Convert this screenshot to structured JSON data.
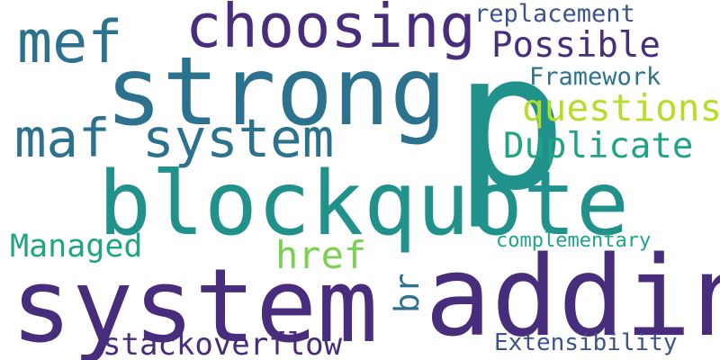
{
  "words": [
    {
      "text": "p",
      "color": "#21918c"
    },
    {
      "text": "system",
      "color": "#472d7b"
    },
    {
      "text": "addin",
      "color": "#472d7b"
    },
    {
      "text": "blockquote",
      "color": "#21918c"
    },
    {
      "text": "strong",
      "color": "#2c728e"
    },
    {
      "text": "choosing",
      "color": "#472d7b"
    },
    {
      "text": "mef",
      "color": "#2c728e"
    },
    {
      "text": "maf system",
      "color": "#2c728e"
    },
    {
      "text": "Possible",
      "color": "#472d7b"
    },
    {
      "text": "Duplicate",
      "color": "#20a486"
    },
    {
      "text": "questions",
      "color": "#b5de2b"
    },
    {
      "text": "Framework",
      "color": "#2c728e"
    },
    {
      "text": "replacement",
      "color": "#3b528b"
    },
    {
      "text": "Managed",
      "color": "#20a486"
    },
    {
      "text": "href",
      "color": "#7ad151"
    },
    {
      "text": "br",
      "color": "#2c728e"
    },
    {
      "text": "complementary",
      "color": "#20a486"
    },
    {
      "text": "stackoverflow",
      "color": "#472d7b"
    },
    {
      "text": "Extensibility",
      "color": "#3b528b"
    }
  ]
}
